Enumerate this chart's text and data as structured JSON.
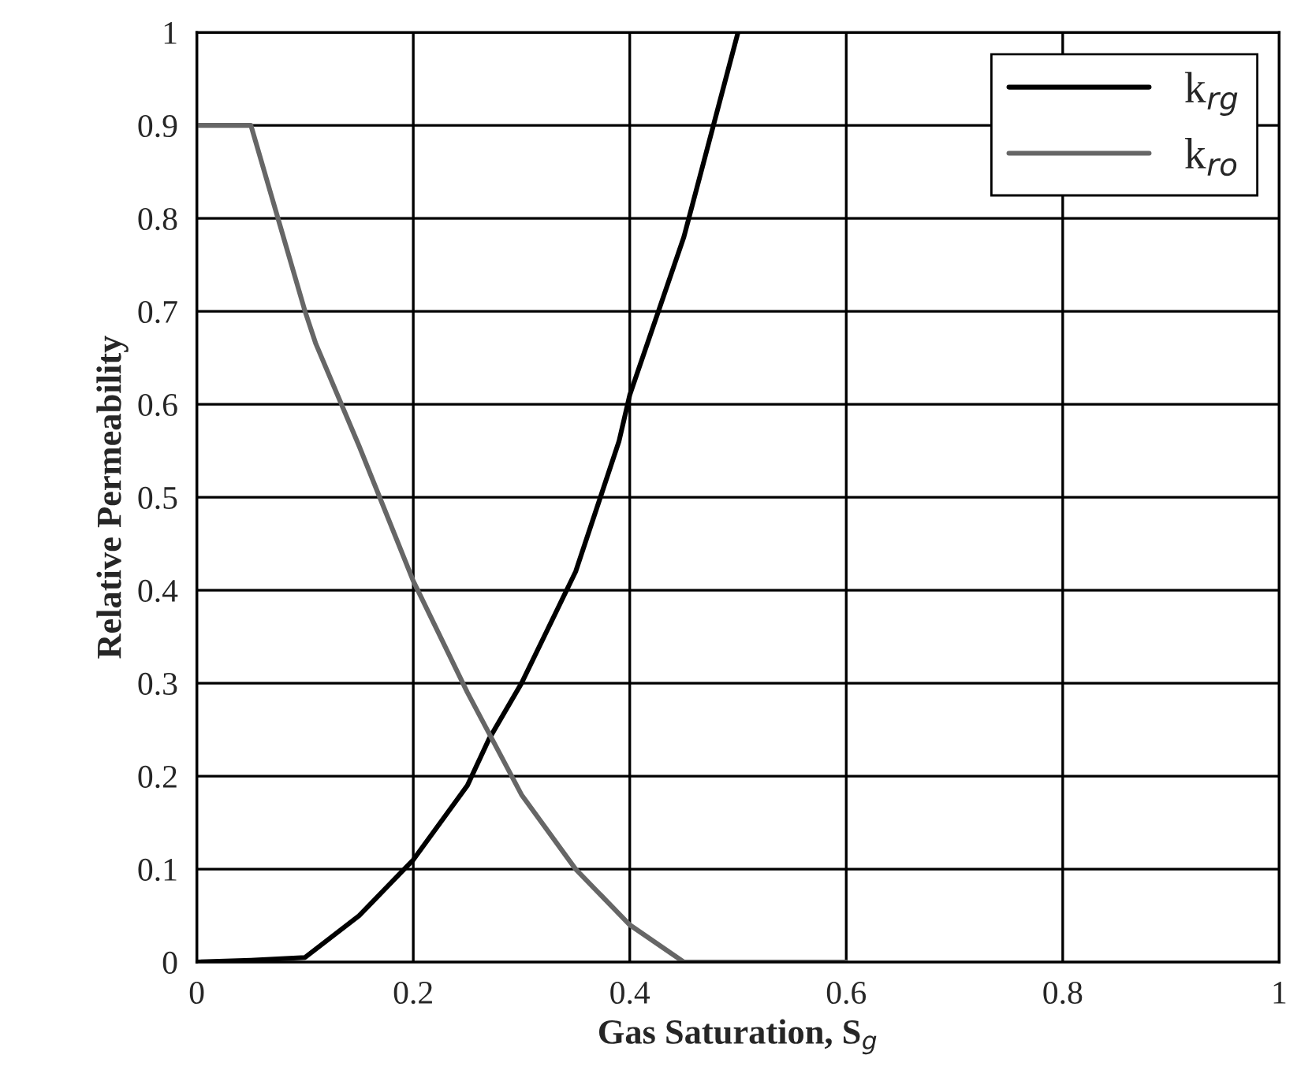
{
  "chart_data": {
    "type": "line",
    "xlabel": "Gas Saturation, S$_{g}$",
    "ylabel": "Relative Permeability",
    "series": [
      {
        "name": "k$_{rg}$",
        "color": "#000000",
        "x": [
          0,
          0.05,
          0.1,
          0.15,
          0.2,
          0.25,
          0.27,
          0.3,
          0.35,
          0.39,
          0.4,
          0.45,
          0.5
        ],
        "values": [
          0,
          0.002,
          0.005,
          0.05,
          0.11,
          0.19,
          0.24,
          0.3,
          0.42,
          0.56,
          0.61,
          0.78,
          1.0
        ]
      },
      {
        "name": "k$_{ro}$",
        "color": "#666666",
        "x": [
          0,
          0.05,
          0.1,
          0.11,
          0.15,
          0.2,
          0.25,
          0.3,
          0.35,
          0.4,
          0.45,
          0.6
        ],
        "values": [
          0.9,
          0.9,
          0.7,
          0.665,
          0.555,
          0.41,
          0.29,
          0.18,
          0.1,
          0.04,
          0,
          0
        ]
      }
    ],
    "xlim": [
      0,
      1
    ],
    "xticks": [
      0,
      0.2,
      0.4,
      0.6,
      0.8,
      1
    ],
    "ylim": [
      0,
      1
    ],
    "yticks": [
      0,
      0.1,
      0.2,
      0.3,
      0.4,
      0.5,
      0.6,
      0.7,
      0.8,
      0.9,
      1
    ],
    "grid": true,
    "legend": "top right",
    "marker": "none",
    "line_style": "solid"
  }
}
